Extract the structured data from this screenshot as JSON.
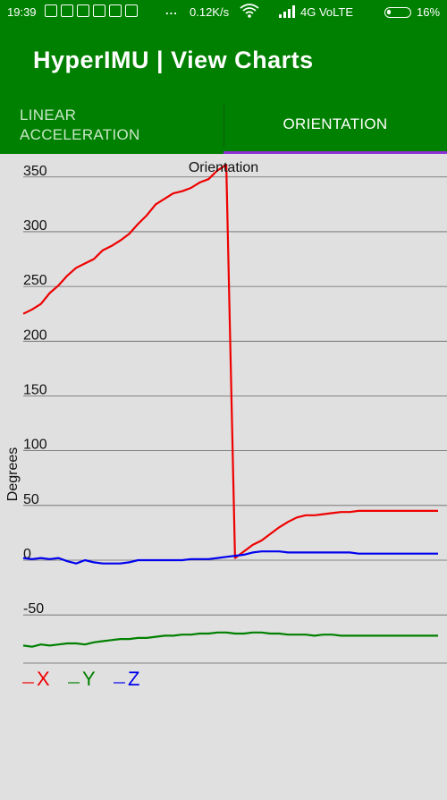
{
  "status_bar": {
    "time": "19:39",
    "more_indicator": "...",
    "net_speed": "0.12K/s",
    "network": "4G VoLTE",
    "battery": "16%",
    "icons": [
      "settings-notification-icon",
      "google-icon",
      "mail-icon",
      "youtube-icon",
      "download-icon",
      "gmail-icon",
      "wifi-icon",
      "signal-icon",
      "battery-icon"
    ]
  },
  "app_bar": {
    "title": "HyperIMU | View Charts"
  },
  "tabs": [
    {
      "label": "LINEAR\nACCELERATION",
      "selected": false
    },
    {
      "label": "ORIENTATION",
      "selected": true
    }
  ],
  "colors": {
    "header": "#008000",
    "tab_indicator": "#8e2fd6",
    "x": "#ee0000",
    "y": "#008000",
    "z": "#0000ee"
  },
  "chart_data": {
    "type": "line",
    "title": "Orientation",
    "ylabel": "Degrees",
    "ylim": [
      -90,
      365
    ],
    "yticks": [
      350,
      300,
      250,
      200,
      150,
      100,
      50,
      0,
      -50
    ],
    "grid": true,
    "legend_position": "bottom-left",
    "x": [
      0,
      1,
      2,
      3,
      4,
      5,
      6,
      7,
      8,
      9,
      10,
      11,
      12,
      13,
      14,
      15,
      16,
      17,
      18,
      19,
      20,
      21,
      22,
      23,
      24,
      25,
      26,
      27,
      28,
      29,
      30,
      31,
      32,
      33,
      34,
      35,
      36,
      37,
      38,
      39,
      40,
      41,
      42,
      43,
      44,
      45,
      46,
      47
    ],
    "series": [
      {
        "name": "X",
        "color": "#ee0000",
        "values": [
          225,
          229,
          234,
          244,
          251,
          260,
          267,
          271,
          275,
          283,
          287,
          292,
          298,
          307,
          315,
          325,
          330,
          335,
          337,
          340,
          345,
          348,
          356,
          361,
          2,
          8,
          14,
          18,
          24,
          30,
          35,
          39,
          41,
          41,
          42,
          43,
          44,
          44,
          45,
          45,
          45,
          45,
          45,
          45,
          45,
          45,
          45,
          45
        ]
      },
      {
        "name": "Y",
        "color": "#008000",
        "values": [
          -78,
          -79,
          -77,
          -78,
          -77,
          -76,
          -76,
          -77,
          -75,
          -74,
          -73,
          -72,
          -72,
          -71,
          -71,
          -70,
          -69,
          -69,
          -68,
          -68,
          -67,
          -67,
          -66,
          -66,
          -67,
          -67,
          -66,
          -66,
          -67,
          -67,
          -68,
          -68,
          -68,
          -69,
          -68,
          -68,
          -69,
          -69,
          -69,
          -69,
          -69,
          -69,
          -69,
          -69,
          -69,
          -69,
          -69,
          -69
        ]
      },
      {
        "name": "Z",
        "color": "#0000ee",
        "values": [
          2,
          1,
          2,
          1,
          2,
          -1,
          -3,
          0,
          -2,
          -3,
          -3,
          -3,
          -2,
          0,
          0,
          0,
          0,
          0,
          0,
          1,
          1,
          1,
          2,
          3,
          4,
          5,
          7,
          8,
          8,
          8,
          7,
          7,
          7,
          7,
          7,
          7,
          7,
          7,
          6,
          6,
          6,
          6,
          6,
          6,
          6,
          6,
          6,
          6
        ]
      }
    ]
  }
}
